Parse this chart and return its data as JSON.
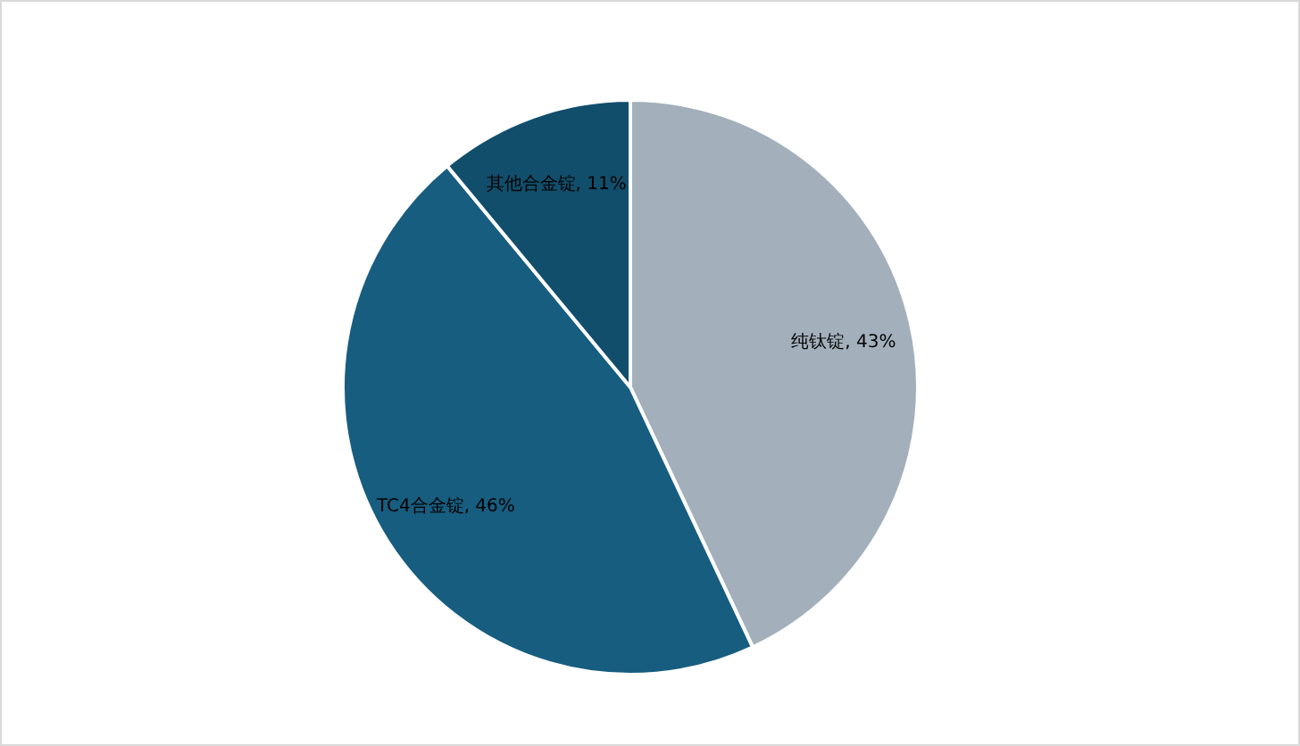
{
  "chart_data": {
    "type": "pie",
    "categories": [
      "纯钛锭",
      "TC4合金锭",
      "其他合金锭"
    ],
    "values": [
      43,
      46,
      11
    ],
    "colors": [
      "#a3b0bb",
      "#175d7f",
      "#114e6b"
    ],
    "value_labels": [
      ", 43%",
      ", 46%",
      ", 11%"
    ]
  }
}
